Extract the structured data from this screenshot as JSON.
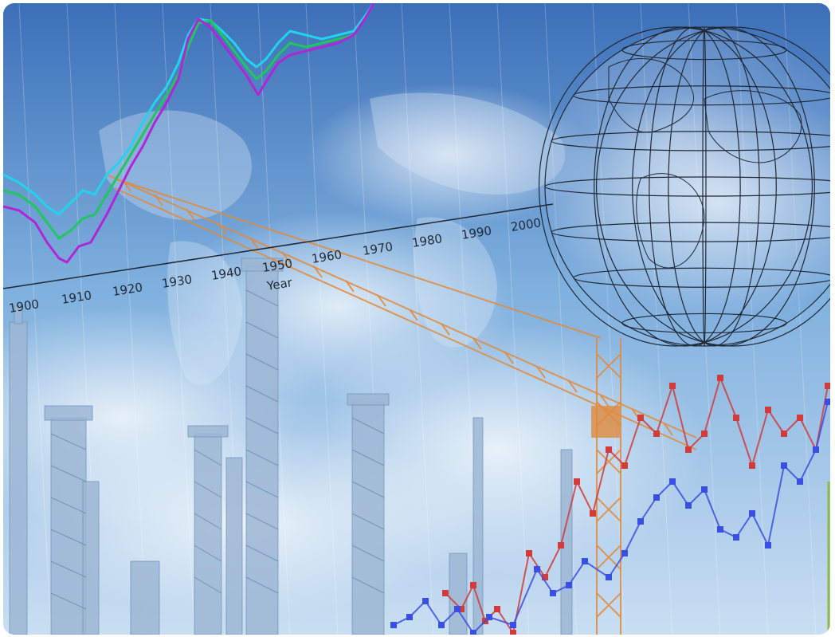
{
  "scene": {
    "subject": "collage",
    "colors": {
      "sky_top": "#3c6fb8",
      "sky_mid": "#7fb0de",
      "sky_low": "#c9def2",
      "industrial": "#9cb6d3",
      "cyan_line": "#22d3ee",
      "green_line": "#22c55e",
      "purple_line": "#b026d6",
      "red_series": "#d03b3b",
      "blue_series": "#3a4fe0",
      "crane": "#e08a3c",
      "globe_line": "#1f2937",
      "frame_edge": "#8fb94a"
    }
  },
  "timeline": {
    "ticks": [
      "1900",
      "1910",
      "1920",
      "1930",
      "1940",
      "1950",
      "1960",
      "1970",
      "1980",
      "1990",
      "2000"
    ],
    "axis_label": "Year"
  }
}
